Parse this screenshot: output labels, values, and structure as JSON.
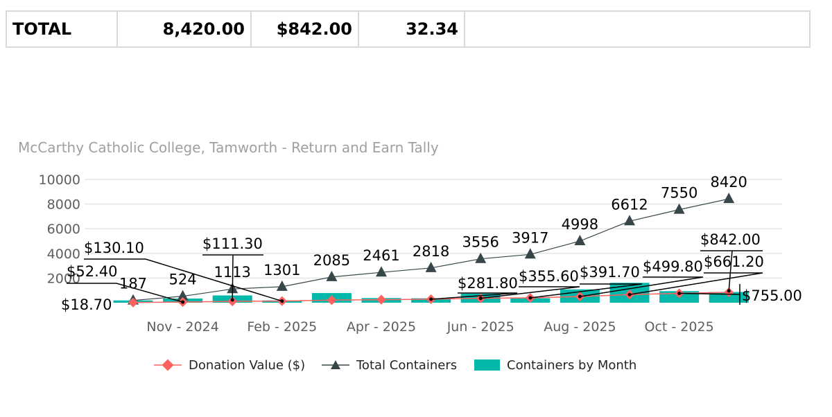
{
  "summary": {
    "label": "TOTAL",
    "total_containers": "8,420.00",
    "donation": "$842.00",
    "other_value": "32.34",
    "blank": ""
  },
  "chart_data": {
    "type": "bar",
    "title": "McCarthy Catholic College, Tamworth  - Return and Earn Tally",
    "x_tick_labels": [
      "Nov - 2024",
      "Feb - 2025",
      "Apr - 2025",
      "Jun - 2025",
      "Aug - 2025",
      "Oct - 2025"
    ],
    "y_ticks": [
      10000,
      8000,
      6000,
      4000,
      2000
    ],
    "ylim": [
      0,
      10000
    ],
    "grid": true,
    "legend_position": "bottom",
    "series": [
      {
        "name": "Donation Value ($)",
        "type": "line",
        "color": "#fd625e",
        "marker": "diamond",
        "values": [
          18.7,
          52.4,
          111.3,
          130.1,
          208.5,
          246.1,
          281.8,
          355.6,
          391.7,
          499.8,
          661.2,
          755.0,
          842.0
        ],
        "labels": [
          "$18.70",
          "$52.40",
          "$111.30",
          "$130.10",
          "",
          "",
          "$281.80",
          "$355.60",
          "$391.70",
          "$499.80",
          "$661.20",
          "$755.00",
          "$842.00"
        ]
      },
      {
        "name": "Total Containers",
        "type": "line",
        "color": "#374649",
        "marker": "triangle",
        "values": [
          187,
          524,
          1113,
          1301,
          2085,
          2461,
          2818,
          3556,
          3917,
          4998,
          6612,
          7550,
          8420
        ],
        "labels": [
          "187",
          "524",
          "1113",
          "1301",
          "2085",
          "2461",
          "2818",
          "3556",
          "3917",
          "4998",
          "6612",
          "7550",
          "8420"
        ]
      },
      {
        "name": "Containers by Month",
        "type": "bar",
        "color": "#01b8aa",
        "values": [
          187,
          337,
          589,
          188,
          784,
          376,
          357,
          738,
          361,
          1081,
          1614,
          938,
          870
        ]
      }
    ]
  }
}
